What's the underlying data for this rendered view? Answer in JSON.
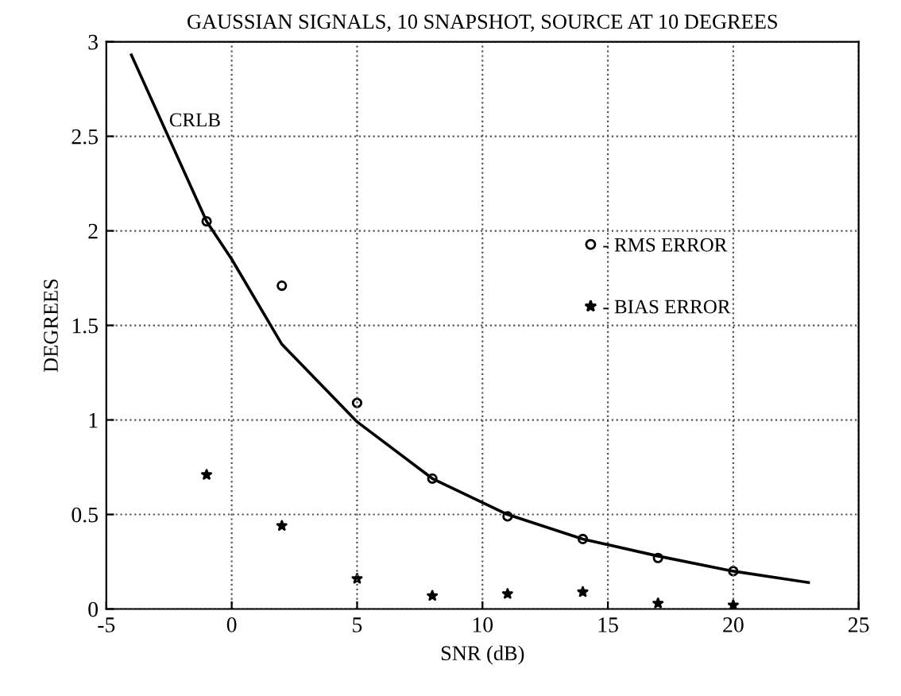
{
  "chart_data": {
    "type": "line",
    "title": "GAUSSIAN SIGNALS, 10 SNAPSHOT, SOURCE AT 10 DEGREES",
    "xlabel": "SNR (dB)",
    "ylabel": "DEGREES",
    "xlim": [
      -5,
      25
    ],
    "xticks": [
      -5,
      0,
      5,
      10,
      15,
      20,
      25
    ],
    "ylim": [
      0,
      3
    ],
    "yticks": [
      0,
      0.5,
      1,
      1.5,
      2,
      2.5,
      3
    ],
    "grid": true,
    "legend": "right",
    "series": [
      {
        "name": "CRLB",
        "color": "#000000",
        "marker": "none",
        "line_style": "solid",
        "x": [
          -4,
          -1,
          0,
          2,
          5,
          8,
          11,
          14,
          17,
          20,
          23
        ],
        "values": [
          2.93,
          2.05,
          1.85,
          1.4,
          0.99,
          0.69,
          0.5,
          0.37,
          0.28,
          0.2,
          0.14
        ]
      },
      {
        "name": "- RMS ERROR",
        "type": "scatter",
        "color": "#000000",
        "marker": "circle",
        "x": [
          -1,
          2,
          5,
          8,
          11,
          14,
          17,
          20
        ],
        "values": [
          2.05,
          1.71,
          1.09,
          0.69,
          0.49,
          0.37,
          0.27,
          0.2
        ]
      },
      {
        "name": "- BIAS ERROR",
        "type": "scatter",
        "color": "#000000",
        "marker": "star",
        "x": [
          -1,
          2,
          5,
          8,
          11,
          14,
          17,
          20
        ],
        "values": [
          0.71,
          0.44,
          0.16,
          0.07,
          0.08,
          0.09,
          0.03,
          0.02
        ]
      }
    ]
  }
}
